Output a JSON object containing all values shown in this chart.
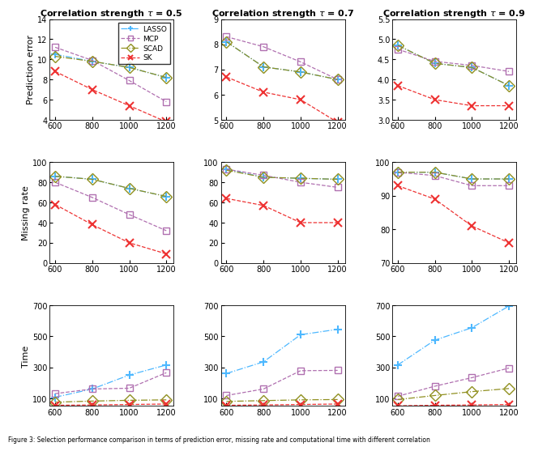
{
  "x": [
    600,
    800,
    1000,
    1200
  ],
  "titles": [
    "Correlation strength $\\tau$ = 0.5",
    "Correlation strength $\\tau$ = 0.7",
    "Correlation strength $\\tau$ = 0.9"
  ],
  "row_labels": [
    "Prediction error",
    "Missing rate",
    "Time"
  ],
  "colors": {
    "LASSO": "#4db8ff",
    "MCP": "#b070b0",
    "SCAD": "#909020",
    "SK": "#ee3333"
  },
  "markers": {
    "LASSO": "+",
    "MCP": "s",
    "SCAD": "D",
    "SK": "x"
  },
  "pred_error": {
    "tau05": {
      "LASSO": [
        10.5,
        9.8,
        9.2,
        8.2
      ],
      "MCP": [
        11.2,
        9.9,
        7.9,
        5.8
      ],
      "SCAD": [
        10.3,
        9.8,
        9.2,
        8.2
      ],
      "SK": [
        8.8,
        7.0,
        5.4,
        3.8
      ]
    },
    "tau07": {
      "LASSO": [
        8.1,
        7.1,
        6.9,
        6.6
      ],
      "MCP": [
        8.3,
        7.9,
        7.3,
        6.6
      ],
      "SCAD": [
        8.1,
        7.1,
        6.9,
        6.6
      ],
      "SK": [
        6.7,
        6.1,
        5.8,
        4.9
      ]
    },
    "tau09": {
      "LASSO": [
        4.85,
        4.4,
        4.3,
        3.85
      ],
      "MCP": [
        4.75,
        4.45,
        4.35,
        4.2
      ],
      "SCAD": [
        4.85,
        4.4,
        4.3,
        3.85
      ],
      "SK": [
        3.85,
        3.5,
        3.35,
        3.35
      ]
    }
  },
  "missing_rate": {
    "tau05": {
      "LASSO": [
        86,
        83,
        74,
        66
      ],
      "MCP": [
        80,
        65,
        48,
        32
      ],
      "SCAD": [
        86,
        83,
        74,
        66
      ],
      "SK": [
        58,
        38,
        20,
        9
      ]
    },
    "tau07": {
      "LASSO": [
        93,
        85,
        84,
        83
      ],
      "MCP": [
        93,
        87,
        80,
        75
      ],
      "SCAD": [
        92,
        85,
        84,
        83
      ],
      "SK": [
        64,
        57,
        40,
        40
      ]
    },
    "tau09": {
      "LASSO": [
        97,
        97,
        95,
        95
      ],
      "MCP": [
        97,
        96,
        93,
        93
      ],
      "SCAD": [
        97,
        97,
        95,
        95
      ],
      "SK": [
        93,
        89,
        81,
        76
      ]
    }
  },
  "time": {
    "tau05": {
      "LASSO": [
        107,
        160,
        250,
        315
      ],
      "MCP": [
        130,
        160,
        165,
        265
      ],
      "SCAD": [
        75,
        82,
        87,
        90
      ],
      "SK": [
        55,
        57,
        60,
        63
      ]
    },
    "tau07": {
      "LASSO": [
        260,
        335,
        510,
        545
      ],
      "MCP": [
        118,
        160,
        278,
        280
      ],
      "SCAD": [
        80,
        85,
        90,
        92
      ],
      "SK": [
        55,
        57,
        60,
        63
      ]
    },
    "tau09": {
      "LASSO": [
        315,
        475,
        555,
        695
      ],
      "MCP": [
        113,
        178,
        233,
        295
      ],
      "SCAD": [
        92,
        118,
        143,
        163
      ],
      "SK": [
        52,
        55,
        57,
        60
      ]
    }
  },
  "ylims": {
    "pred_tau05": [
      4,
      14
    ],
    "pred_tau07": [
      5,
      9
    ],
    "pred_tau09": [
      3,
      5.5
    ],
    "miss_tau05": [
      0,
      100
    ],
    "miss_tau07": [
      0,
      100
    ],
    "miss_tau09": [
      70,
      100
    ],
    "time_tau05": [
      50,
      700
    ],
    "time_tau07": [
      50,
      700
    ],
    "time_tau09": [
      50,
      700
    ]
  },
  "yticks": {
    "pred_tau05": [
      4,
      6,
      8,
      10,
      12,
      14
    ],
    "pred_tau07": [
      5,
      6,
      7,
      8,
      9
    ],
    "pred_tau09": [
      3.0,
      3.5,
      4.0,
      4.5,
      5.0,
      5.5
    ],
    "miss_tau05": [
      0,
      20,
      40,
      60,
      80,
      100
    ],
    "miss_tau07": [
      0,
      20,
      40,
      60,
      80,
      100
    ],
    "miss_tau09": [
      70,
      80,
      90,
      100
    ],
    "time_tau05": [
      100,
      300,
      500,
      700
    ],
    "time_tau07": [
      100,
      300,
      500,
      700
    ],
    "time_tau09": [
      100,
      300,
      500,
      700
    ]
  },
  "caption": "Figure 3: Selection performance comparison in terms of prediction error, missing rate and computational time with different correlation"
}
